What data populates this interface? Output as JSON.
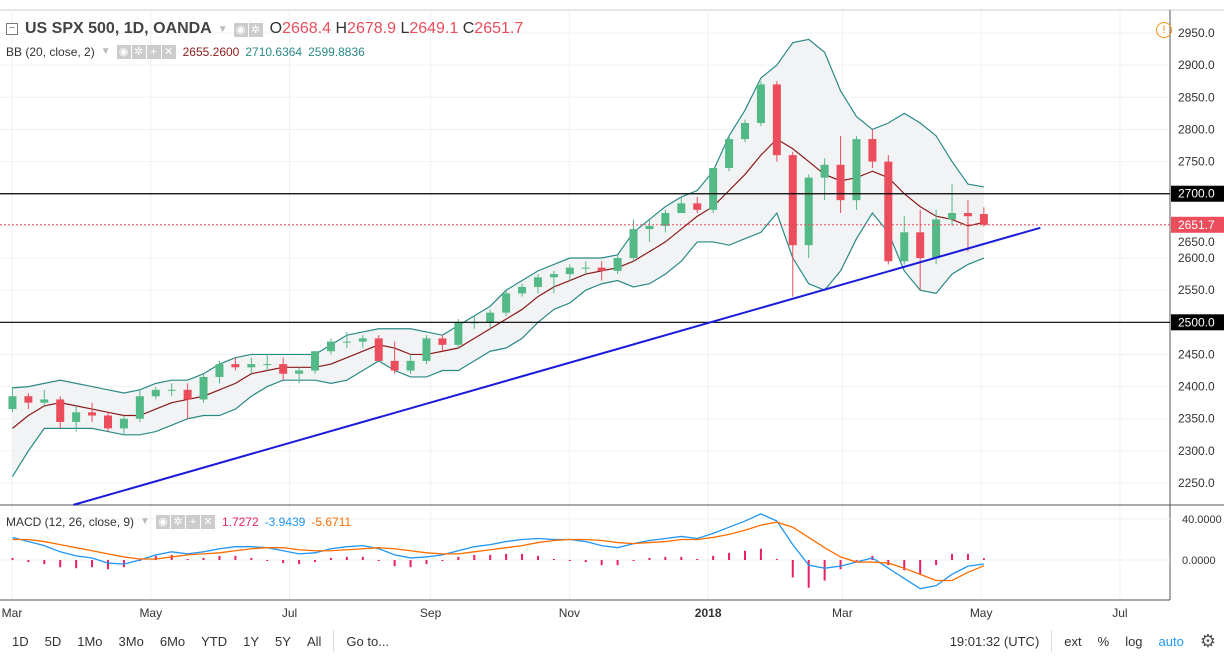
{
  "header": {
    "symbol": "US SPX 500, 1D, OANDA",
    "o_label": "O",
    "o": "2668.4",
    "h_label": "H",
    "h": "2678.9",
    "l_label": "L",
    "l": "2649.1",
    "c_label": "C",
    "c": "2651.7"
  },
  "bb": {
    "label": "BB (20, close, 2)",
    "mid": "2655.2600",
    "upper": "2710.6364",
    "lower": "2599.8836"
  },
  "macd": {
    "label": "MACD (12, 26, close, 9)",
    "hist": "1.7272",
    "macd": "-3.9439",
    "signal": "-5.6711"
  },
  "toolbar": {
    "ranges": [
      "1D",
      "5D",
      "1Mo",
      "3Mo",
      "6Mo",
      "YTD",
      "1Y",
      "5Y",
      "All"
    ],
    "goto": "Go to...",
    "time": "19:01:32 (UTC)",
    "ext": "ext",
    "pct": "%",
    "log": "log",
    "auto": "auto"
  },
  "colors": {
    "up": "#53b987",
    "down": "#eb4d5c",
    "band": "#2a8a86",
    "mid": "#8b1a1a",
    "macd": "#2196f3",
    "signal": "#ff6d00",
    "hist": "#e91e63",
    "trend": "#1a1adb"
  },
  "chart_data": {
    "type": "candlestick",
    "title": "US SPX 500, 1D, OANDA",
    "price_ticks": [
      2250,
      2300,
      2350,
      2400,
      2450,
      2500,
      2550,
      2600,
      2650,
      2700,
      2750,
      2800,
      2850,
      2900,
      2950
    ],
    "ylim": [
      2200,
      2970
    ],
    "x_ticks": [
      {
        "label": "Mar",
        "date": "2017-03-01"
      },
      {
        "label": "May",
        "date": "2017-05-01"
      },
      {
        "label": "Jul",
        "date": "2017-07-01"
      },
      {
        "label": "Sep",
        "date": "2017-09-01"
      },
      {
        "label": "Nov",
        "date": "2017-11-01"
      },
      {
        "label": "2018",
        "date": "2018-01-01"
      },
      {
        "label": "Mar",
        "date": "2018-03-01"
      },
      {
        "label": "May",
        "date": "2018-05-01"
      },
      {
        "label": "Jul",
        "date": "2018-07-01"
      }
    ],
    "horizontal_lines": [
      {
        "price": 2700,
        "label": "2700.0"
      },
      {
        "price": 2500,
        "label": "2500.0"
      }
    ],
    "last_price": {
      "price": 2651.7,
      "label": "2651.7"
    },
    "trendline": {
      "start": [
        "2017-03-28",
        2216
      ],
      "end": [
        "2018-05-27",
        2647
      ]
    },
    "macd_ticks": [
      {
        "v": 40,
        "label": "40.0000"
      },
      {
        "v": 0,
        "label": "0.0000"
      }
    ],
    "weeks": [
      "2017-02-27",
      "2017-03-06",
      "2017-03-13",
      "2017-03-20",
      "2017-03-27",
      "2017-04-03",
      "2017-04-10",
      "2017-04-17",
      "2017-04-24",
      "2017-05-01",
      "2017-05-08",
      "2017-05-15",
      "2017-05-22",
      "2017-05-29",
      "2017-06-05",
      "2017-06-12",
      "2017-06-19",
      "2017-06-26",
      "2017-07-03",
      "2017-07-10",
      "2017-07-17",
      "2017-07-24",
      "2017-07-31",
      "2017-08-07",
      "2017-08-14",
      "2017-08-21",
      "2017-08-28",
      "2017-09-04",
      "2017-09-11",
      "2017-09-18",
      "2017-09-25",
      "2017-10-02",
      "2017-10-09",
      "2017-10-16",
      "2017-10-23",
      "2017-10-30",
      "2017-11-06",
      "2017-11-13",
      "2017-11-20",
      "2017-11-27",
      "2017-12-04",
      "2017-12-11",
      "2017-12-18",
      "2017-12-25",
      "2018-01-01",
      "2018-01-08",
      "2018-01-15",
      "2018-01-22",
      "2018-01-29",
      "2018-02-05",
      "2018-02-12",
      "2018-02-19",
      "2018-02-26",
      "2018-03-05",
      "2018-03-12",
      "2018-03-19",
      "2018-03-26",
      "2018-04-02",
      "2018-04-09",
      "2018-04-16",
      "2018-04-23",
      "2018-04-30"
    ],
    "ohlc": [
      [
        2365,
        2400,
        2360,
        2385
      ],
      [
        2385,
        2390,
        2365,
        2375
      ],
      [
        2375,
        2395,
        2370,
        2380
      ],
      [
        2380,
        2385,
        2335,
        2345
      ],
      [
        2345,
        2370,
        2330,
        2360
      ],
      [
        2360,
        2375,
        2345,
        2355
      ],
      [
        2355,
        2360,
        2330,
        2335
      ],
      [
        2335,
        2355,
        2325,
        2350
      ],
      [
        2350,
        2395,
        2345,
        2385
      ],
      [
        2385,
        2400,
        2380,
        2395
      ],
      [
        2395,
        2405,
        2385,
        2395
      ],
      [
        2395,
        2405,
        2350,
        2380
      ],
      [
        2380,
        2420,
        2375,
        2415
      ],
      [
        2415,
        2440,
        2405,
        2435
      ],
      [
        2435,
        2445,
        2425,
        2430
      ],
      [
        2430,
        2445,
        2420,
        2435
      ],
      [
        2435,
        2450,
        2425,
        2435
      ],
      [
        2435,
        2445,
        2410,
        2420
      ],
      [
        2420,
        2430,
        2405,
        2425
      ],
      [
        2425,
        2455,
        2420,
        2455
      ],
      [
        2455,
        2475,
        2450,
        2470
      ],
      [
        2470,
        2485,
        2460,
        2470
      ],
      [
        2470,
        2480,
        2460,
        2475
      ],
      [
        2475,
        2480,
        2440,
        2440
      ],
      [
        2440,
        2470,
        2420,
        2425
      ],
      [
        2425,
        2450,
        2420,
        2440
      ],
      [
        2440,
        2480,
        2435,
        2475
      ],
      [
        2475,
        2480,
        2455,
        2465
      ],
      [
        2465,
        2505,
        2460,
        2500
      ],
      [
        2500,
        2510,
        2490,
        2500
      ],
      [
        2500,
        2520,
        2490,
        2515
      ],
      [
        2515,
        2550,
        2510,
        2545
      ],
      [
        2545,
        2560,
        2540,
        2555
      ],
      [
        2555,
        2575,
        2545,
        2570
      ],
      [
        2570,
        2580,
        2545,
        2575
      ],
      [
        2575,
        2590,
        2565,
        2585
      ],
      [
        2585,
        2595,
        2575,
        2585
      ],
      [
        2585,
        2595,
        2565,
        2580
      ],
      [
        2580,
        2605,
        2575,
        2600
      ],
      [
        2600,
        2660,
        2595,
        2645
      ],
      [
        2645,
        2660,
        2625,
        2650
      ],
      [
        2650,
        2675,
        2640,
        2670
      ],
      [
        2670,
        2695,
        2670,
        2685
      ],
      [
        2685,
        2695,
        2670,
        2675
      ],
      [
        2675,
        2740,
        2670,
        2740
      ],
      [
        2740,
        2790,
        2735,
        2785
      ],
      [
        2785,
        2815,
        2780,
        2810
      ],
      [
        2810,
        2875,
        2805,
        2870
      ],
      [
        2870,
        2875,
        2750,
        2760
      ],
      [
        2760,
        2765,
        2540,
        2620
      ],
      [
        2620,
        2730,
        2600,
        2725
      ],
      [
        2725,
        2755,
        2690,
        2745
      ],
      [
        2745,
        2790,
        2670,
        2690
      ],
      [
        2690,
        2790,
        2675,
        2785
      ],
      [
        2785,
        2800,
        2740,
        2750
      ],
      [
        2750,
        2760,
        2590,
        2595
      ],
      [
        2595,
        2665,
        2590,
        2640
      ],
      [
        2640,
        2675,
        2550,
        2600
      ],
      [
        2600,
        2675,
        2590,
        2660
      ],
      [
        2660,
        2715,
        2650,
        2670
      ],
      [
        2670,
        2690,
        2610,
        2665
      ],
      [
        2668.4,
        2678.9,
        2649.1,
        2651.7
      ]
    ],
    "bb_upper": [
      2398,
      2400,
      2405,
      2410,
      2405,
      2400,
      2395,
      2390,
      2395,
      2405,
      2410,
      2410,
      2420,
      2435,
      2445,
      2450,
      2450,
      2450,
      2450,
      2450,
      2465,
      2480,
      2485,
      2490,
      2490,
      2490,
      2485,
      2480,
      2495,
      2510,
      2525,
      2550,
      2565,
      2580,
      2590,
      2600,
      2600,
      2600,
      2605,
      2640,
      2660,
      2680,
      2695,
      2705,
      2735,
      2790,
      2830,
      2880,
      2900,
      2935,
      2940,
      2920,
      2860,
      2820,
      2800,
      2810,
      2825,
      2810,
      2790,
      2750,
      2715,
      2710.6
    ],
    "bb_mid": [
      2335,
      2355,
      2370,
      2375,
      2370,
      2365,
      2360,
      2355,
      2355,
      2365,
      2375,
      2380,
      2385,
      2395,
      2405,
      2420,
      2425,
      2430,
      2430,
      2430,
      2435,
      2445,
      2455,
      2465,
      2460,
      2450,
      2450,
      2455,
      2460,
      2475,
      2490,
      2505,
      2520,
      2540,
      2555,
      2565,
      2575,
      2580,
      2585,
      2595,
      2610,
      2625,
      2645,
      2665,
      2680,
      2705,
      2730,
      2760,
      2785,
      2770,
      2750,
      2730,
      2720,
      2725,
      2735,
      2725,
      2700,
      2680,
      2665,
      2660,
      2650,
      2655.3
    ],
    "bb_lower": [
      2260,
      2300,
      2335,
      2335,
      2335,
      2335,
      2330,
      2325,
      2325,
      2330,
      2340,
      2350,
      2355,
      2355,
      2365,
      2385,
      2400,
      2410,
      2410,
      2410,
      2405,
      2410,
      2425,
      2440,
      2425,
      2415,
      2415,
      2425,
      2425,
      2440,
      2455,
      2460,
      2475,
      2500,
      2520,
      2530,
      2550,
      2560,
      2565,
      2555,
      2560,
      2575,
      2595,
      2625,
      2625,
      2620,
      2630,
      2640,
      2670,
      2600,
      2560,
      2550,
      2580,
      2630,
      2670,
      2640,
      2580,
      2550,
      2545,
      2575,
      2590,
      2599.9
    ],
    "macd_line": [
      22,
      18,
      14,
      8,
      4,
      2,
      -3,
      -4,
      0,
      5,
      8,
      6,
      8,
      11,
      13,
      13,
      12,
      9,
      6,
      7,
      11,
      13,
      14,
      11,
      5,
      2,
      3,
      5,
      9,
      13,
      15,
      18,
      20,
      21,
      20,
      20,
      18,
      14,
      12,
      16,
      19,
      21,
      23,
      21,
      26,
      32,
      38,
      45,
      38,
      15,
      -5,
      -8,
      -6,
      -2,
      2,
      -8,
      -18,
      -28,
      -25,
      -14,
      -6,
      -3.94
    ],
    "signal_line": [
      20,
      20,
      18,
      15,
      12,
      9,
      6,
      3,
      1,
      1,
      3,
      5,
      6,
      7,
      9,
      11,
      12,
      12,
      10,
      9,
      9,
      10,
      11,
      12,
      11,
      9,
      7,
      6,
      6,
      8,
      10,
      12,
      14,
      17,
      19,
      20,
      20,
      19,
      17,
      16,
      17,
      18,
      20,
      20,
      22,
      25,
      29,
      34,
      37,
      32,
      22,
      12,
      3,
      -2,
      -2,
      -3,
      -8,
      -14,
      -20,
      -20,
      -12,
      -5.67
    ]
  }
}
